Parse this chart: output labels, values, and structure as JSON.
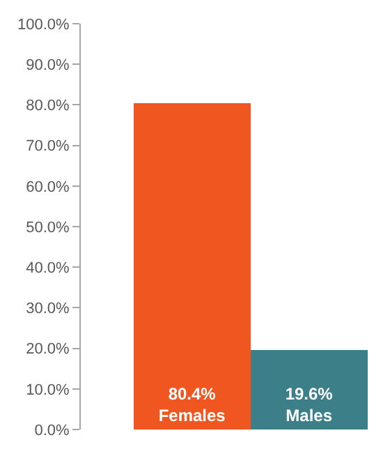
{
  "chart_data": {
    "type": "bar",
    "categories": [
      null,
      null
    ],
    "values": [
      80.4,
      19.6
    ],
    "colors": [
      "#f0561f",
      "#3d7f89"
    ],
    "value_labels": [
      "80.4%\nFemales",
      "19.6%\nMales"
    ],
    "ylim": [
      0,
      100
    ],
    "yticks": [
      {
        "value": 0,
        "label": "0.0%"
      },
      {
        "value": 10,
        "label": "10.0%"
      },
      {
        "value": 20,
        "label": "20.0%"
      },
      {
        "value": 30,
        "label": "30.0%"
      },
      {
        "value": 40,
        "label": "40.0%"
      },
      {
        "value": 50,
        "label": "50.0%"
      },
      {
        "value": 60,
        "label": "60.0%"
      },
      {
        "value": 70,
        "label": "70.0%"
      },
      {
        "value": 80,
        "label": "80.0%"
      },
      {
        "value": 90,
        "label": "90.0%"
      },
      {
        "value": 100,
        "label": "100.0%"
      }
    ],
    "tick_labels": "y"
  }
}
